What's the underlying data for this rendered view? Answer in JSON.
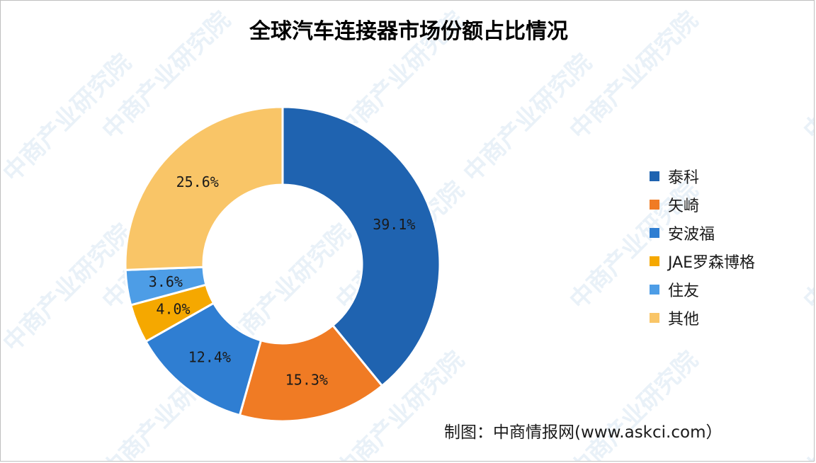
{
  "chart_data": {
    "type": "pie",
    "variant": "donut",
    "title": "全球汽车连接器市场份额占比情况",
    "categories": [
      "泰科",
      "矢崎",
      "安波福",
      "JAE罗森博格",
      "住友",
      "其他"
    ],
    "values": [
      39.1,
      15.3,
      12.4,
      4.0,
      3.6,
      25.6
    ],
    "labels": [
      "39.1%",
      "15.3%",
      "12.4%",
      "4.0%",
      "3.6%",
      "25.6%"
    ],
    "colors": [
      "#1f63b0",
      "#f07b24",
      "#2f7ed2",
      "#f5a800",
      "#4d9de6",
      "#f9c567"
    ],
    "legend_position": "right"
  },
  "watermark": "中商产业研究院",
  "source": "制图：中商情报网(www.askci.com）"
}
